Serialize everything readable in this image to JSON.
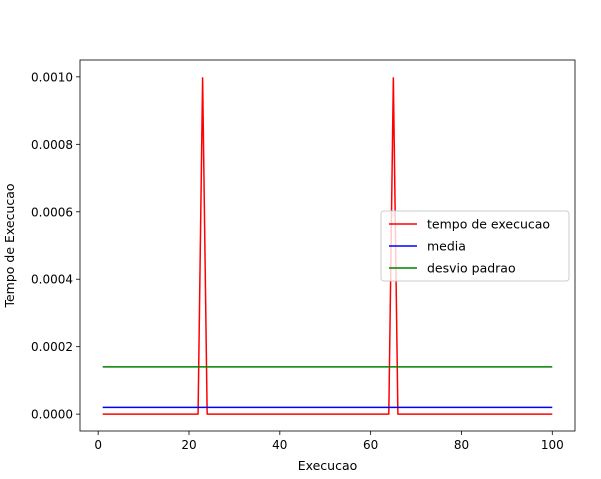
{
  "chart_data": {
    "type": "line",
    "title": "",
    "xlabel": "Execucao",
    "ylabel": "Tempo de Execucao",
    "xlim": [
      -4,
      105
    ],
    "ylim": [
      -5e-05,
      0.00105
    ],
    "xticks": [
      0,
      20,
      40,
      60,
      80,
      100
    ],
    "xtick_labels": [
      "0",
      "20",
      "40",
      "60",
      "80",
      "100"
    ],
    "yticks": [
      0.0,
      0.0002,
      0.0004,
      0.0006,
      0.0008,
      0.001
    ],
    "ytick_labels": [
      "0.0000",
      "0.0002",
      "0.0004",
      "0.0006",
      "0.0008",
      "0.0010"
    ],
    "grid": false,
    "legend_position": "center-right",
    "series": [
      {
        "name": "tempo de execucao",
        "color": "#ff0000",
        "x": [
          1,
          22,
          23,
          24,
          64,
          65,
          66,
          100
        ],
        "y": [
          0,
          0,
          0.000997,
          0,
          0,
          0.000997,
          0,
          0
        ]
      },
      {
        "name": "media",
        "color": "#0000ff",
        "x": [
          1,
          100
        ],
        "y": [
          2e-05,
          2e-05
        ]
      },
      {
        "name": "desvio padrao",
        "color": "#008000",
        "x": [
          1,
          100
        ],
        "y": [
          0.00014,
          0.00014
        ]
      }
    ]
  }
}
